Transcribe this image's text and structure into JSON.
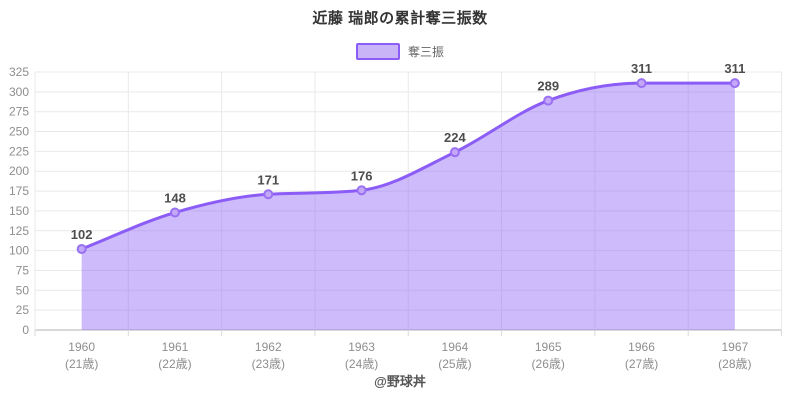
{
  "chart_data": {
    "type": "area",
    "title": "近藤 瑞郎の累計奪三振数",
    "legend": [
      {
        "label": "奪三振"
      }
    ],
    "categories": [
      {
        "year": "1960",
        "age": "(21歳)"
      },
      {
        "year": "1961",
        "age": "(22歳)"
      },
      {
        "year": "1962",
        "age": "(23歳)"
      },
      {
        "year": "1963",
        "age": "(24歳)"
      },
      {
        "year": "1964",
        "age": "(25歳)"
      },
      {
        "year": "1965",
        "age": "(26歳)"
      },
      {
        "year": "1966",
        "age": "(27歳)"
      },
      {
        "year": "1967",
        "age": "(28歳)"
      }
    ],
    "series": [
      {
        "name": "奪三振",
        "values": [
          102,
          148,
          171,
          176,
          224,
          289,
          311,
          311
        ]
      }
    ],
    "ylim": [
      0,
      325
    ],
    "ytick_step": 25,
    "grid": true,
    "legend_position": "top",
    "colors": {
      "line": "#8b5cf6",
      "fill": "#8b5cf6",
      "fill_opacity": 0.42,
      "point_fill": "#c3a8f7",
      "point_stroke": "#9a70f2",
      "grid": "#e9e9e9",
      "axis": "#d9d9d9",
      "tick_text": "#8e8e8e",
      "value_label": "#4d4d4d"
    }
  },
  "footer": {
    "credit": "@野球丼"
  }
}
